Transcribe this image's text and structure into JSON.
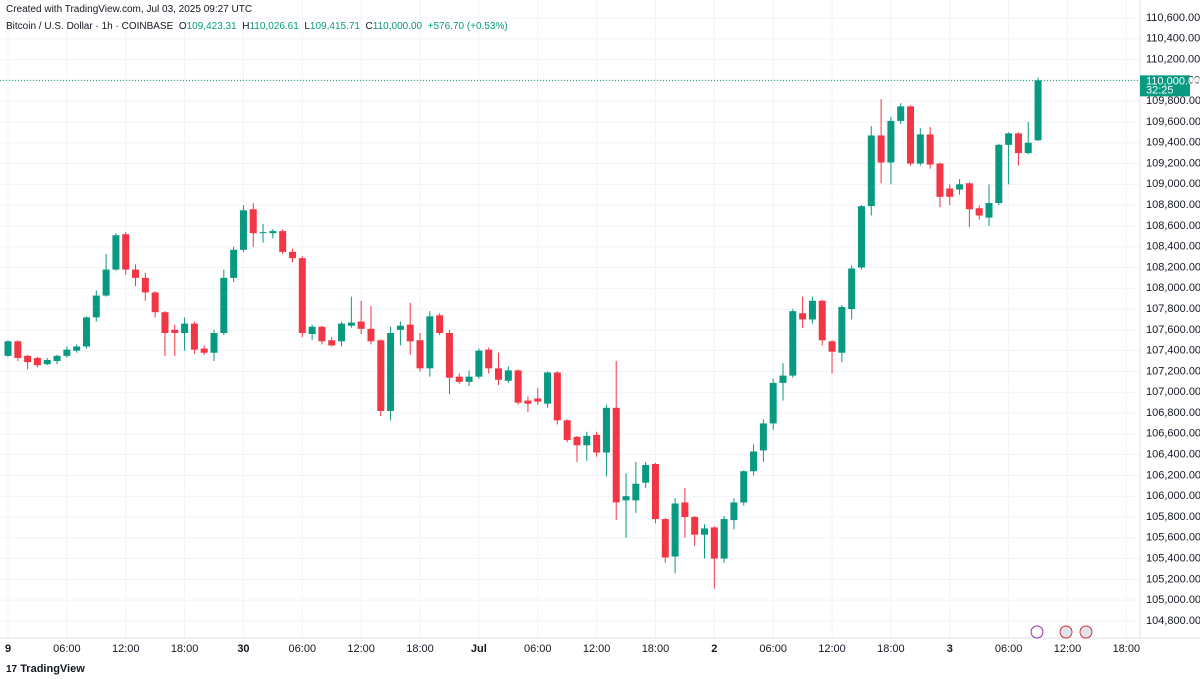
{
  "header": {
    "created": "Created with TradingView.com, Jul 03, 2025 09:27 UTC",
    "symbol": "Bitcoin / U.S. Dollar · 1h · COINBASE",
    "o_label": "O",
    "h_label": "H",
    "l_label": "L",
    "c_label": "C",
    "open": "109,423.31",
    "high": "110,026.61",
    "low": "109,415.71",
    "close": "110,000.00",
    "change": "+576.70 (+0.53%)"
  },
  "footer": {
    "brand": "TradingView"
  },
  "chart_data": {
    "type": "candlestick",
    "up_color": "#089981",
    "down_color": "#f23645",
    "grid": true,
    "categories": [
      "9",
      null,
      null,
      null,
      null,
      null,
      "06:00",
      null,
      null,
      null,
      null,
      null,
      "12:00",
      null,
      null,
      null,
      null,
      null,
      "18:00",
      null,
      null,
      null,
      null,
      null,
      "30",
      null,
      null,
      null,
      null,
      null,
      "06:00",
      null,
      null,
      null,
      null,
      null,
      "12:00",
      null,
      null,
      null,
      null,
      null,
      "18:00",
      null,
      null,
      null,
      null,
      null,
      "Jul",
      null,
      null,
      null,
      null,
      null,
      "06:00",
      null,
      null,
      null,
      null,
      null,
      "12:00",
      null,
      null,
      null,
      null,
      null,
      "18:00",
      null,
      null,
      null,
      null,
      null,
      "2",
      null,
      null,
      null,
      null,
      null,
      "06:00",
      null,
      null,
      null,
      null,
      null,
      "12:00",
      null,
      null,
      null,
      null,
      null,
      "18:00",
      null,
      null,
      null,
      null,
      null,
      "3",
      null,
      null,
      null,
      null,
      null,
      "06:00",
      null,
      null,
      null,
      null,
      null,
      "12:00",
      null,
      null,
      null,
      null,
      null,
      "18:00",
      null
    ],
    "open": [
      107350,
      107490,
      107350,
      107330,
      107270,
      107300,
      107350,
      107400,
      107440,
      107720,
      107930,
      108180,
      108520,
      108180,
      108100,
      107960,
      107770,
      107600,
      107570,
      107660,
      107420,
      107380,
      107570,
      108100,
      108370,
      108760,
      108530,
      108530,
      108550,
      108350,
      108290,
      107560,
      107630,
      107500,
      107490,
      107640,
      107680,
      107610,
      107500,
      106820,
      107600,
      107650,
      107500,
      107230,
      107740,
      107570,
      107150,
      107100,
      107150,
      107410,
      107230,
      107110,
      107210,
      106920,
      106940,
      106890,
      107190,
      106730,
      106570,
      106490,
      106590,
      106420,
      106850,
      105960,
      105960,
      106130,
      106310,
      105780,
      105420,
      105940,
      105800,
      105630,
      105700,
      105400,
      105770,
      105940,
      106240,
      106440,
      106700,
      107090,
      107160,
      107760,
      107700,
      107880,
      107490,
      107380,
      107800,
      108200,
      108790,
      109470,
      109210,
      109610,
      109750,
      109200,
      109480,
      109200,
      108960,
      108950,
      109010,
      108770,
      108680,
      108820,
      109380,
      109490,
      109300,
      109423.31,
      null,
      null,
      null,
      null,
      null,
      null,
      null,
      null,
      null,
      null
    ],
    "high": [
      107500,
      107500,
      107360,
      107340,
      107330,
      107360,
      107440,
      107460,
      107730,
      107980,
      108330,
      108530,
      108540,
      108230,
      108150,
      107970,
      107780,
      107650,
      107720,
      107680,
      107450,
      107600,
      108180,
      108400,
      108800,
      108820,
      108620,
      108570,
      108570,
      108380,
      108310,
      107650,
      107640,
      107530,
      107680,
      107920,
      107880,
      107830,
      107510,
      107630,
      107680,
      107860,
      107570,
      107780,
      107760,
      107600,
      107180,
      107210,
      107420,
      107430,
      107380,
      107250,
      107220,
      106960,
      107040,
      107200,
      107200,
      106740,
      106580,
      106620,
      106620,
      106880,
      107300,
      106220,
      106330,
      106330,
      106320,
      105790,
      105980,
      106080,
      105810,
      105730,
      105710,
      105810,
      105980,
      106250,
      106500,
      106740,
      107130,
      107280,
      107800,
      107920,
      107920,
      107890,
      107500,
      107840,
      108220,
      108800,
      109560,
      109820,
      109650,
      109780,
      109760,
      109540,
      109550,
      109210,
      109000,
      109050,
      109020,
      108800,
      109000,
      109390,
      109500,
      109500,
      109600,
      110026.61,
      null,
      null,
      null,
      null,
      null,
      null,
      null,
      null,
      null,
      null
    ],
    "low": [
      107340,
      107300,
      107220,
      107240,
      107260,
      107270,
      107330,
      107380,
      107420,
      107680,
      107920,
      108170,
      108130,
      108020,
      107880,
      107720,
      107350,
      107350,
      107400,
      107370,
      107360,
      107300,
      107550,
      108060,
      108350,
      108400,
      108440,
      108480,
      108330,
      108250,
      107530,
      107500,
      107460,
      107440,
      107440,
      107620,
      107560,
      107460,
      106770,
      106730,
      107450,
      107360,
      107200,
      107150,
      107550,
      106980,
      107080,
      107060,
      107130,
      107180,
      107070,
      107090,
      106880,
      106810,
      106880,
      106850,
      106690,
      106520,
      106330,
      106340,
      106380,
      106190,
      105770,
      105600,
      105840,
      106080,
      105740,
      105360,
      105260,
      105600,
      105520,
      105400,
      105110,
      105360,
      105680,
      105910,
      106200,
      106330,
      106640,
      106920,
      107140,
      107620,
      107660,
      107450,
      107180,
      107290,
      107700,
      108180,
      108700,
      109010,
      109000,
      109580,
      109180,
      109180,
      109150,
      108780,
      108800,
      108900,
      108590,
      108660,
      108600,
      108800,
      109000,
      109180,
      109290,
      109415.71,
      null,
      null,
      null,
      null,
      null,
      null,
      null,
      null,
      null,
      null
    ],
    "close": [
      107490,
      107330,
      107290,
      107260,
      107310,
      107350,
      107410,
      107440,
      107720,
      107930,
      108180,
      108510,
      108180,
      108100,
      107960,
      107770,
      107570,
      107570,
      107660,
      107410,
      107380,
      107570,
      108100,
      108370,
      108750,
      108530,
      108540,
      108550,
      108350,
      108290,
      107570,
      107630,
      107490,
      107450,
      107660,
      107670,
      107610,
      107490,
      106820,
      107570,
      107640,
      107490,
      107230,
      107730,
      107570,
      107140,
      107100,
      107150,
      107400,
      107230,
      107120,
      107210,
      106900,
      106890,
      106910,
      107190,
      106730,
      106540,
      106490,
      106580,
      106420,
      106850,
      105940,
      106000,
      106120,
      106300,
      105780,
      105410,
      105930,
      105800,
      105630,
      105690,
      105400,
      105780,
      105940,
      106240,
      106430,
      106700,
      107090,
      107160,
      107780,
      107700,
      107880,
      107500,
      107390,
      107820,
      108190,
      108790,
      109470,
      109210,
      109610,
      109750,
      109200,
      109480,
      109190,
      108880,
      108880,
      109000,
      108760,
      108700,
      108820,
      109380,
      109490,
      109300,
      109400,
      110000,
      null,
      null,
      null,
      null,
      null,
      null,
      null,
      null,
      null,
      null
    ],
    "ylim": [
      104636,
      110773
    ],
    "yticks": [
      {
        "value": 104800,
        "label": "104,800.00"
      },
      {
        "value": 105000,
        "label": "105,000.00"
      },
      {
        "value": 105200,
        "label": "105,200.00"
      },
      {
        "value": 105400,
        "label": "105,400.00"
      },
      {
        "value": 105600,
        "label": "105,600.00"
      },
      {
        "value": 105800,
        "label": "105,800.00"
      },
      {
        "value": 106000,
        "label": "106,000.00"
      },
      {
        "value": 106200,
        "label": "106,200.00"
      },
      {
        "value": 106400,
        "label": "106,400.00"
      },
      {
        "value": 106600,
        "label": "106,600.00"
      },
      {
        "value": 106800,
        "label": "106,800.00"
      },
      {
        "value": 107000,
        "label": "107,000.00"
      },
      {
        "value": 107200,
        "label": "107,200.00"
      },
      {
        "value": 107400,
        "label": "107,400.00"
      },
      {
        "value": 107600,
        "label": "107,600.00"
      },
      {
        "value": 107800,
        "label": "107,800.00"
      },
      {
        "value": 108000,
        "label": "108,000.00"
      },
      {
        "value": 108200,
        "label": "108,200.00"
      },
      {
        "value": 108400,
        "label": "108,400.00"
      },
      {
        "value": 108600,
        "label": "108,600.00"
      },
      {
        "value": 108800,
        "label": "108,800.00"
      },
      {
        "value": 109000,
        "label": "109,000.00"
      },
      {
        "value": 109200,
        "label": "109,200.00"
      },
      {
        "value": 109400,
        "label": "109,400.00"
      },
      {
        "value": 109600,
        "label": "109,600.00"
      },
      {
        "value": 109800,
        "label": "109,800.00"
      },
      {
        "value": 110000,
        "label": "110,000.00"
      },
      {
        "value": 110200,
        "label": "110,200.00"
      },
      {
        "value": 110400,
        "label": "110,400.00"
      },
      {
        "value": 110600,
        "label": "110,600.00"
      }
    ],
    "last_price": {
      "value": 110000,
      "label": "110,000.00"
    },
    "countdown": "32:25"
  }
}
